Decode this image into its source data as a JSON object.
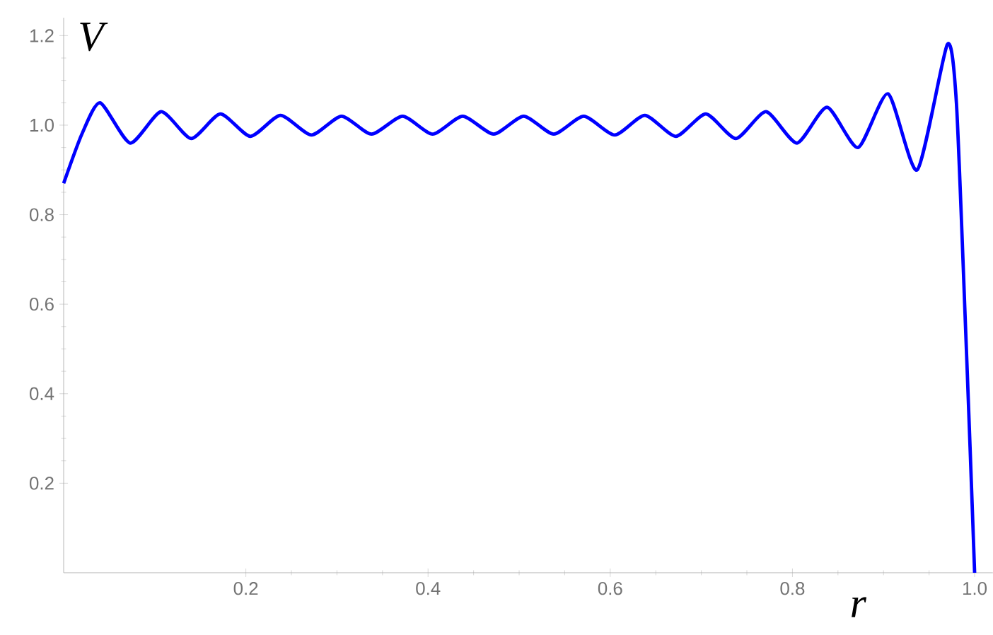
{
  "chart_data": {
    "type": "line",
    "xlabel": "r",
    "ylabel": "V",
    "x": [
      0,
      0.02,
      0.04,
      0.073,
      0.107,
      0.14,
      0.172,
      0.205,
      0.238,
      0.272,
      0.305,
      0.338,
      0.372,
      0.405,
      0.438,
      0.472,
      0.505,
      0.538,
      0.571,
      0.605,
      0.638,
      0.672,
      0.705,
      0.738,
      0.771,
      0.805,
      0.838,
      0.872,
      0.905,
      0.937,
      0.97,
      0.98,
      0.99,
      0.995,
      1.0
    ],
    "series": [
      {
        "color": "#0000ff",
        "values": [
          0.87,
          0.98,
          1.05,
          0.96,
          1.03,
          0.97,
          1.025,
          0.975,
          1.022,
          0.978,
          1.02,
          0.98,
          1.02,
          0.98,
          1.02,
          0.98,
          1.02,
          0.98,
          1.02,
          0.978,
          1.022,
          0.975,
          1.025,
          0.97,
          1.03,
          0.96,
          1.04,
          0.95,
          1.07,
          0.9,
          1.18,
          1.05,
          0.55,
          0.28,
          0
        ]
      }
    ],
    "xlim": [
      0,
      1.02
    ],
    "ylim": [
      0,
      1.24
    ],
    "xticks": [
      0.2,
      0.4,
      0.6,
      0.8,
      {
        "value": 1,
        "label": "1.0"
      }
    ],
    "yticks": [
      0.2,
      0.4,
      0.6,
      0.8,
      {
        "value": 1,
        "label": "1.0"
      },
      1.2
    ]
  }
}
